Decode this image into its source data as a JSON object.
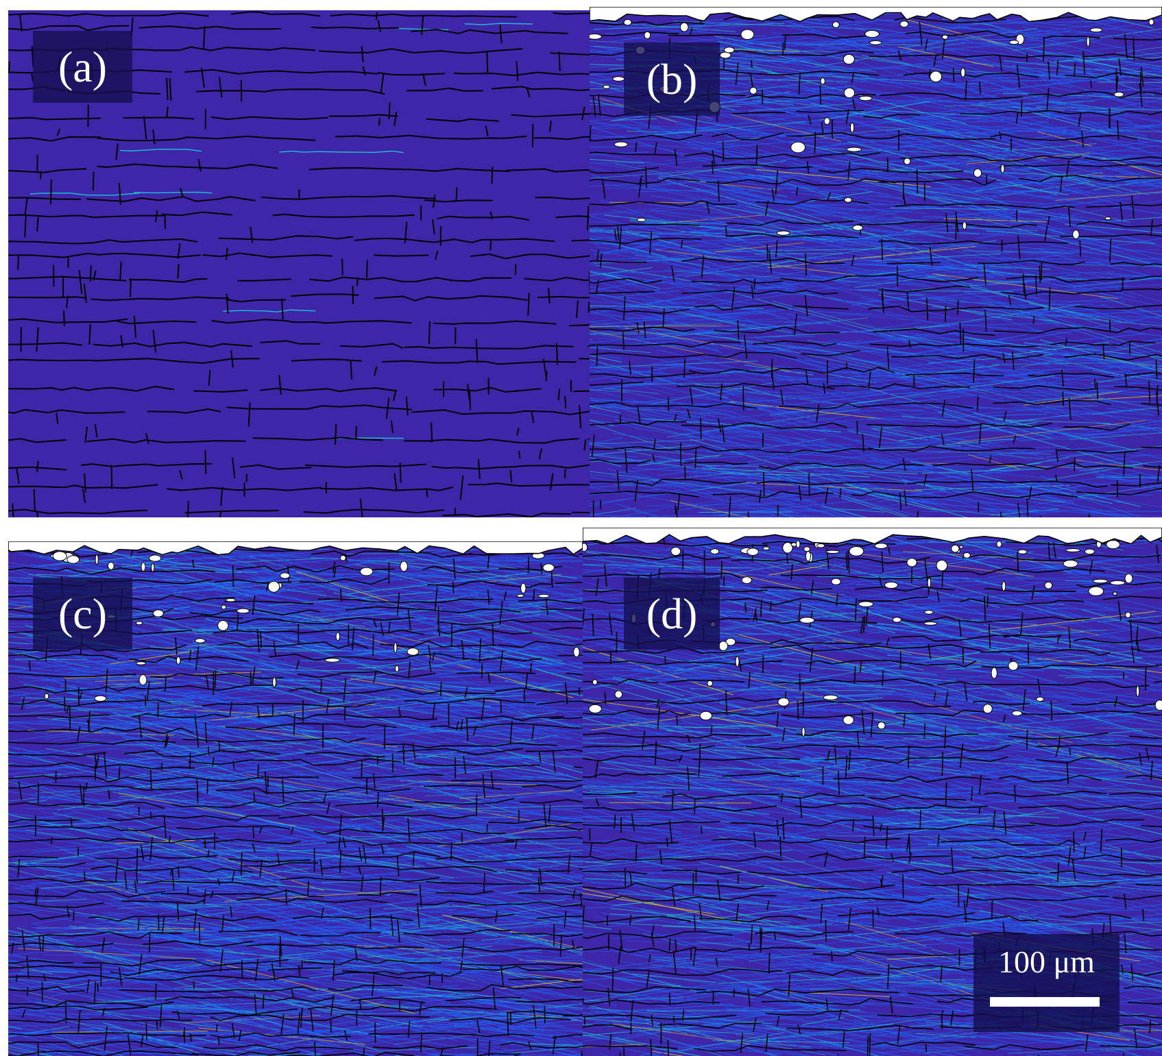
{
  "panels": [
    {
      "id": "a",
      "label": "(a)"
    },
    {
      "id": "b",
      "label": "(b)"
    },
    {
      "id": "c",
      "label": "(c)"
    },
    {
      "id": "d",
      "label": "(d)"
    }
  ],
  "scale_bar": {
    "label": "100 μm"
  },
  "colors": {
    "background": "#3e26a8",
    "grain_boundary": "#000000",
    "low_misorientation": "#2060f0",
    "mid_misorientation": "#1fb8d0",
    "high_misorientation": "#d8c020",
    "pores": "#ffffff",
    "label_box": "#141050"
  }
}
